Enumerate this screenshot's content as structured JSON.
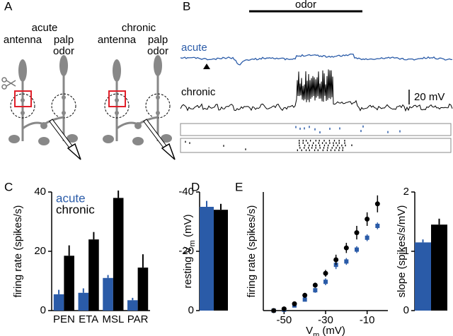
{
  "panel_labels": [
    "A",
    "B",
    "C",
    "D",
    "E"
  ],
  "diagram": {
    "left": {
      "condition": "acute",
      "antenna": "antenna",
      "palp": "palp",
      "odor": "odor"
    },
    "right": {
      "condition": "chronic",
      "antenna": "antenna",
      "palp": "palp",
      "odor": "odor"
    }
  },
  "traces": {
    "stimulus": "odor",
    "acute": "acute",
    "chronic": "chronic",
    "scale_bar": "20 mV"
  },
  "chart_data": [
    {
      "type": "bar",
      "categories": [
        "PEN",
        "ETA",
        "MSL",
        "PAR"
      ],
      "ylabel": "firing rate (spikes/s)",
      "ylim": [
        0,
        40
      ],
      "yticks": [
        0,
        20,
        40
      ],
      "legend": "upper left",
      "series": [
        {
          "name": "acute",
          "color": "#2a5ba8",
          "values": [
            5.5,
            6,
            11,
            3.5
          ],
          "errors": [
            1.5,
            1.5,
            1,
            0.8
          ]
        },
        {
          "name": "chronic",
          "color": "#000000",
          "values": [
            18.5,
            24,
            38,
            14.5
          ],
          "errors": [
            3.5,
            2.5,
            2.5,
            4.5
          ]
        }
      ]
    },
    {
      "type": "bar",
      "categories": [
        null
      ],
      "ylabel": {
        "text": "resting V",
        "sub": "m",
        "rest": " (mV)"
      },
      "ylim": [
        0,
        -40
      ],
      "yticks": [
        0,
        -20,
        -40
      ],
      "series": [
        {
          "color": "#2a5ba8",
          "values": [
            -35
          ],
          "errors": [
            2
          ]
        },
        {
          "color": "#000000",
          "values": [
            -34
          ],
          "errors": [
            2
          ]
        }
      ]
    },
    {
      "type": "scatter",
      "xlabel": {
        "text": "V",
        "sub": "m",
        "rest": " (mV)"
      },
      "ylabel": "firing rate (spikes/s)",
      "xlim": [
        -60,
        0
      ],
      "xticks": [
        -50,
        -30,
        -10
      ],
      "ylim": [
        0,
        70
      ],
      "x": [
        -55,
        -50,
        -45,
        -40,
        -35,
        -30,
        -25,
        -20,
        -15,
        -10,
        -5
      ],
      "series": [
        {
          "color": "#2a5ba8",
          "marker": "square",
          "values": [
            0,
            0.5,
            3,
            6.5,
            12,
            17,
            27,
            29,
            36,
            43,
            50
          ],
          "errors": [
            0.5,
            0.5,
            1,
            1,
            1.5,
            2,
            2.5,
            2,
            2,
            2,
            2
          ]
        },
        {
          "color": "#000000",
          "marker": "circle",
          "values": [
            0,
            1,
            4,
            9,
            15,
            22,
            30,
            37,
            46,
            54,
            63
          ],
          "errors": [
            1,
            1,
            1,
            1.5,
            1.5,
            2,
            3,
            3,
            4,
            4,
            5
          ]
        }
      ]
    },
    {
      "type": "bar",
      "categories": [
        null
      ],
      "ylabel": "slope (spikes/s/mV)",
      "ylim": [
        0,
        2
      ],
      "yticks": [
        0,
        1,
        2
      ],
      "series": [
        {
          "color": "#2a5ba8",
          "values": [
            1.15
          ],
          "errors": [
            0.05
          ]
        },
        {
          "color": "#000000",
          "values": [
            1.45
          ],
          "errors": [
            0.1
          ]
        }
      ]
    }
  ]
}
